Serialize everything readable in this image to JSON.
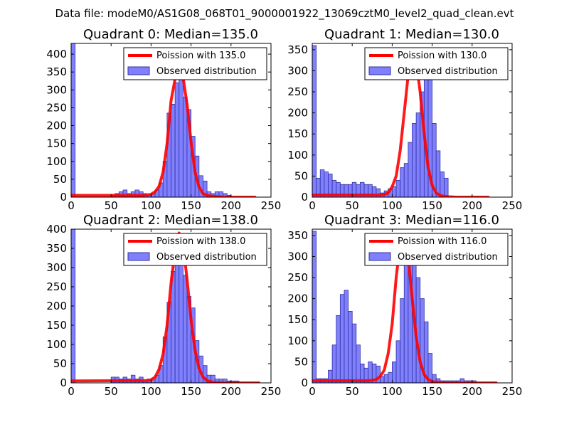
{
  "figure_title": "Data file: modeM0/AS1G08_068T01_9000001922_13069cztM0_level2_quad_clean.evt",
  "colors": {
    "histogram_fill": "#8080ff",
    "histogram_edge": "#3030a0",
    "poisson_line": "#ff0000"
  },
  "chart_data": [
    {
      "type": "bar",
      "title": "Quadrant 0: Median=135.0",
      "xlim": [
        0,
        250
      ],
      "ylim": [
        0,
        430
      ],
      "xticks": [
        0,
        50,
        100,
        150,
        200,
        250
      ],
      "yticks": [
        0,
        50,
        100,
        150,
        200,
        250,
        300,
        350,
        400
      ],
      "legend": {
        "placement": "top-right",
        "line_label": "Poission with 135.0",
        "bar_label": "Observed distribution"
      },
      "histogram": {
        "bin_width": 5,
        "bin_starts": [
          0,
          5,
          10,
          15,
          20,
          25,
          30,
          35,
          40,
          45,
          50,
          55,
          60,
          65,
          70,
          75,
          80,
          85,
          90,
          95,
          100,
          105,
          110,
          115,
          120,
          125,
          130,
          135,
          140,
          145,
          150,
          155,
          160,
          165,
          170,
          175,
          180,
          185,
          190,
          195,
          200,
          205,
          210,
          215,
          220,
          225,
          230
        ],
        "counts": [
          430,
          0,
          0,
          0,
          0,
          0,
          0,
          0,
          0,
          0,
          5,
          10,
          15,
          20,
          10,
          15,
          20,
          15,
          10,
          5,
          10,
          20,
          40,
          100,
          235,
          260,
          320,
          330,
          280,
          245,
          170,
          115,
          60,
          45,
          15,
          10,
          15,
          15,
          10,
          5,
          0,
          0,
          0,
          0,
          0,
          0,
          0
        ]
      },
      "poisson": {
        "mean": 135.0,
        "x": [
          0,
          90,
          95,
          100,
          105,
          110,
          115,
          120,
          125,
          130,
          135,
          140,
          145,
          150,
          155,
          160,
          165,
          170,
          175,
          180,
          185,
          190,
          200,
          230
        ],
        "y": [
          5,
          5,
          6,
          8,
          15,
          30,
          70,
          150,
          270,
          330,
          380,
          335,
          260,
          155,
          70,
          28,
          10,
          5,
          3,
          2,
          1,
          0,
          0,
          0
        ]
      }
    },
    {
      "type": "bar",
      "title": "Quadrant 1: Median=130.0",
      "xlim": [
        0,
        250
      ],
      "ylim": [
        0,
        365
      ],
      "xticks": [
        0,
        50,
        100,
        150,
        200,
        250
      ],
      "yticks": [
        0,
        50,
        100,
        150,
        200,
        250,
        300,
        350
      ],
      "legend": {
        "placement": "top-right",
        "line_label": "Poission with 130.0",
        "bar_label": "Observed distribution"
      },
      "histogram": {
        "bin_width": 5,
        "bin_starts": [
          0,
          5,
          10,
          15,
          20,
          25,
          30,
          35,
          40,
          45,
          50,
          55,
          60,
          65,
          70,
          75,
          80,
          85,
          90,
          95,
          100,
          105,
          110,
          115,
          120,
          125,
          130,
          135,
          140,
          145,
          150,
          155,
          160,
          165,
          170,
          175,
          180,
          185,
          190,
          195,
          200,
          205,
          210,
          215,
          220
        ],
        "counts": [
          360,
          45,
          65,
          60,
          55,
          40,
          35,
          30,
          30,
          30,
          35,
          30,
          35,
          30,
          30,
          25,
          20,
          10,
          15,
          20,
          25,
          40,
          70,
          80,
          130,
          175,
          200,
          250,
          340,
          320,
          175,
          110,
          60,
          45,
          0,
          0,
          0,
          0,
          0,
          0,
          0,
          0,
          0,
          0,
          0
        ]
      },
      "poisson": {
        "mean": 130.0,
        "x": [
          0,
          85,
          90,
          95,
          100,
          105,
          110,
          115,
          120,
          125,
          130,
          135,
          140,
          145,
          150,
          155,
          160,
          165,
          170,
          180,
          220
        ],
        "y": [
          5,
          5,
          6,
          10,
          25,
          50,
          110,
          200,
          290,
          345,
          325,
          250,
          150,
          70,
          28,
          10,
          4,
          2,
          1,
          0,
          0
        ]
      }
    },
    {
      "type": "bar",
      "title": "Quadrant 2: Median=138.0",
      "xlim": [
        0,
        250
      ],
      "ylim": [
        0,
        400
      ],
      "xticks": [
        0,
        50,
        100,
        150,
        200,
        250
      ],
      "yticks": [
        0,
        50,
        100,
        150,
        200,
        250,
        300,
        350,
        400
      ],
      "legend": {
        "placement": "top-right",
        "line_label": "Poission with 138.0",
        "bar_label": "Observed distribution"
      },
      "histogram": {
        "bin_width": 5,
        "bin_starts": [
          0,
          5,
          10,
          15,
          20,
          25,
          30,
          35,
          40,
          45,
          50,
          55,
          60,
          65,
          70,
          75,
          80,
          85,
          90,
          95,
          100,
          105,
          110,
          115,
          120,
          125,
          130,
          135,
          140,
          145,
          150,
          155,
          160,
          165,
          170,
          175,
          180,
          185,
          190,
          195,
          200,
          205,
          210,
          215,
          220,
          225,
          230
        ],
        "counts": [
          400,
          0,
          0,
          0,
          0,
          0,
          0,
          0,
          0,
          0,
          15,
          15,
          10,
          15,
          10,
          20,
          10,
          15,
          5,
          10,
          10,
          20,
          45,
          120,
          210,
          290,
          380,
          330,
          280,
          225,
          195,
          110,
          70,
          45,
          20,
          20,
          10,
          10,
          10,
          5,
          5,
          5,
          0,
          0,
          0,
          0,
          0
        ]
      },
      "poisson": {
        "mean": 138.0,
        "x": [
          0,
          95,
          100,
          105,
          110,
          115,
          120,
          125,
          130,
          135,
          140,
          145,
          150,
          155,
          160,
          165,
          170,
          175,
          180,
          190,
          235
        ],
        "y": [
          5,
          6,
          8,
          15,
          35,
          75,
          150,
          260,
          345,
          390,
          360,
          270,
          165,
          85,
          38,
          15,
          6,
          3,
          1,
          0,
          0
        ]
      }
    },
    {
      "type": "bar",
      "title": "Quadrant 3: Median=116.0",
      "xlim": [
        0,
        250
      ],
      "ylim": [
        0,
        365
      ],
      "xticks": [
        0,
        50,
        100,
        150,
        200,
        250
      ],
      "yticks": [
        0,
        50,
        100,
        150,
        200,
        250,
        300,
        350
      ],
      "legend": {
        "placement": "top-right",
        "line_label": "Poission with 116.0",
        "bar_label": "Observed distribution"
      },
      "histogram": {
        "bin_width": 5,
        "bin_starts": [
          0,
          5,
          10,
          15,
          20,
          25,
          30,
          35,
          40,
          45,
          50,
          55,
          60,
          65,
          70,
          75,
          80,
          85,
          90,
          95,
          100,
          105,
          110,
          115,
          120,
          125,
          130,
          135,
          140,
          145,
          150,
          155,
          160,
          165,
          170,
          175,
          180,
          185,
          190,
          195,
          200,
          205,
          210,
          215,
          220,
          225
        ],
        "counts": [
          360,
          10,
          10,
          10,
          30,
          90,
          160,
          210,
          220,
          170,
          140,
          90,
          45,
          35,
          50,
          45,
          40,
          15,
          20,
          25,
          50,
          100,
          200,
          280,
          310,
          300,
          250,
          200,
          145,
          70,
          20,
          10,
          5,
          5,
          5,
          5,
          5,
          10,
          5,
          5,
          5,
          0,
          0,
          0,
          0,
          0
        ]
      },
      "poisson": {
        "mean": 116.0,
        "x": [
          0,
          70,
          75,
          80,
          85,
          90,
          95,
          100,
          105,
          110,
          115,
          120,
          125,
          130,
          135,
          140,
          145,
          150,
          160,
          170,
          230
        ],
        "y": [
          5,
          5,
          6,
          8,
          15,
          30,
          70,
          140,
          250,
          330,
          350,
          300,
          200,
          110,
          50,
          20,
          8,
          3,
          1,
          0,
          0
        ]
      }
    }
  ]
}
